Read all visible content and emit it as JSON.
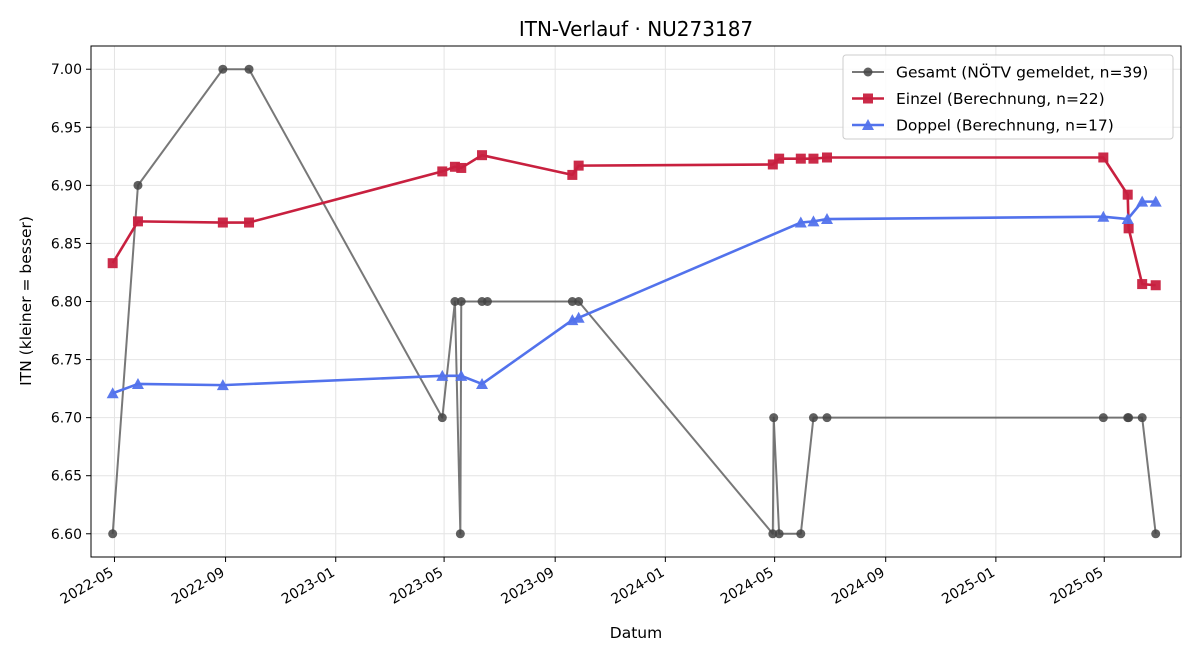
{
  "chart_data": {
    "type": "line",
    "title": "ITN-Verlauf · NU273187",
    "xlabel": "Datum",
    "ylabel": "ITN  (kleiner = besser)",
    "xlim": [
      "2022-04-05",
      "2025-07-25"
    ],
    "ylim": [
      6.58,
      7.02
    ],
    "grid": true,
    "legend_position": "top-right",
    "x_ticks": [
      "2022-05",
      "2022-09",
      "2023-01",
      "2023-05",
      "2023-09",
      "2024-01",
      "2024-05",
      "2024-09",
      "2025-01",
      "2025-05"
    ],
    "y_ticks": [
      "6.60",
      "6.65",
      "6.70",
      "6.75",
      "6.80",
      "6.85",
      "6.90",
      "6.95",
      "7.00"
    ],
    "series": [
      {
        "name": "Gesamt (NÖTV gemeldet, n=39)",
        "color": "#444444",
        "marker": "circle",
        "points": [
          [
            "2022-04-29",
            6.6
          ],
          [
            "2022-05-27",
            6.9
          ],
          [
            "2022-08-29",
            7.0
          ],
          [
            "2022-09-27",
            7.0
          ],
          [
            "2023-04-29",
            6.7
          ],
          [
            "2023-05-13",
            6.8
          ],
          [
            "2023-05-19",
            6.6
          ],
          [
            "2023-05-20",
            6.8
          ],
          [
            "2023-06-12",
            6.8
          ],
          [
            "2023-06-18",
            6.8
          ],
          [
            "2023-09-20",
            6.8
          ],
          [
            "2023-09-27",
            6.8
          ],
          [
            "2024-04-29",
            6.6
          ],
          [
            "2024-04-30",
            6.7
          ],
          [
            "2024-05-06",
            6.6
          ],
          [
            "2024-05-30",
            6.6
          ],
          [
            "2024-06-13",
            6.7
          ],
          [
            "2024-06-28",
            6.7
          ],
          [
            "2025-04-30",
            6.7
          ],
          [
            "2025-05-27",
            6.7
          ],
          [
            "2025-05-28",
            6.7
          ],
          [
            "2025-06-12",
            6.7
          ],
          [
            "2025-06-27",
            6.6
          ]
        ]
      },
      {
        "name": "Einzel (Berechnung, n=22)",
        "color": "#c8203f",
        "marker": "square",
        "points": [
          [
            "2022-04-29",
            6.833
          ],
          [
            "2022-05-27",
            6.869
          ],
          [
            "2022-08-29",
            6.868
          ],
          [
            "2022-09-27",
            6.868
          ],
          [
            "2023-04-29",
            6.912
          ],
          [
            "2023-05-13",
            6.916
          ],
          [
            "2023-05-20",
            6.915
          ],
          [
            "2023-06-12",
            6.926
          ],
          [
            "2023-09-20",
            6.909
          ],
          [
            "2023-09-27",
            6.917
          ],
          [
            "2024-04-29",
            6.918
          ],
          [
            "2024-05-06",
            6.923
          ],
          [
            "2024-05-30",
            6.923
          ],
          [
            "2024-06-13",
            6.923
          ],
          [
            "2024-06-28",
            6.924
          ],
          [
            "2025-04-30",
            6.924
          ],
          [
            "2025-05-27",
            6.892
          ],
          [
            "2025-05-28",
            6.863
          ],
          [
            "2025-06-12",
            6.815
          ],
          [
            "2025-06-27",
            6.814
          ]
        ]
      },
      {
        "name": "Doppel (Berechnung, n=17)",
        "color": "#5272ec",
        "marker": "triangle",
        "points": [
          [
            "2022-04-29",
            6.721
          ],
          [
            "2022-05-27",
            6.729
          ],
          [
            "2022-08-29",
            6.728
          ],
          [
            "2023-04-29",
            6.736
          ],
          [
            "2023-05-20",
            6.736
          ],
          [
            "2023-06-12",
            6.729
          ],
          [
            "2023-09-20",
            6.784
          ],
          [
            "2023-09-27",
            6.786
          ],
          [
            "2024-05-30",
            6.868
          ],
          [
            "2024-06-13",
            6.869
          ],
          [
            "2024-06-28",
            6.871
          ],
          [
            "2025-04-30",
            6.873
          ],
          [
            "2025-05-27",
            6.871
          ],
          [
            "2025-06-12",
            6.886
          ],
          [
            "2025-06-27",
            6.886
          ]
        ]
      }
    ]
  }
}
